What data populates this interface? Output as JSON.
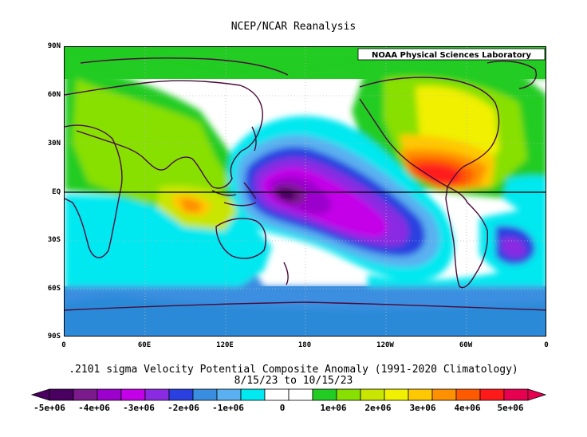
{
  "title": "NCEP/NCAR Reanalysis",
  "credit": "NOAA Physical Sciences Laboratory",
  "lat_labels": [
    "90N",
    "60N",
    "30N",
    "EQ",
    "30S",
    "60S",
    "90S"
  ],
  "lon_labels": [
    "0",
    "60E",
    "120E",
    "180",
    "120W",
    "60W",
    "0"
  ],
  "caption_line1": ".2101 sigma Velocity Potential  Composite Anomaly (1991-2020 Climatology)",
  "caption_line2": "8/15/23  to 10/15/23",
  "colorbar": {
    "labels": [
      "-5e+06",
      "-4e+06",
      "-3e+06",
      "-2e+06",
      "-1e+06",
      "0",
      "1e+06",
      "2e+06",
      "3e+06",
      "4e+06",
      "5e+06"
    ],
    "colors": [
      "#4a0060",
      "#7a1a8c",
      "#9b00cc",
      "#c400e8",
      "#8a2be2",
      "#2a3fe0",
      "#3a8ee0",
      "#5ab0f0",
      "#00e8f0",
      "#ffffff",
      "#ffffff",
      "#22cc22",
      "#88e000",
      "#c8e600",
      "#f0f000",
      "#ffc800",
      "#ff9000",
      "#ff5a00",
      "#ff1a1a",
      "#e80050"
    ]
  },
  "colors": {
    "coast": "#4b0a3c",
    "equator": "#000000"
  }
}
